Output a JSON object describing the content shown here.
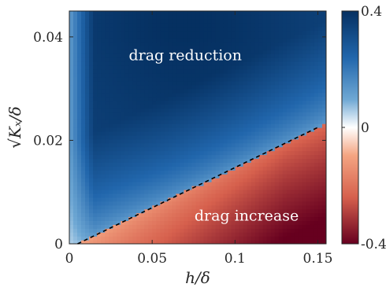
{
  "chart_data": {
    "type": "heatmap",
    "title": "",
    "xlabel": "h/δ",
    "ylabel": "√Kₓ/δ",
    "xlim": [
      0,
      0.155
    ],
    "ylim": [
      0,
      0.045
    ],
    "x_ticks": [
      "0",
      "0.05",
      "0.1",
      "0.15"
    ],
    "x_tick_values": [
      0,
      0.05,
      0.1,
      0.15
    ],
    "y_ticks": [
      "0",
      "0.02",
      "0.04"
    ],
    "y_tick_values": [
      0,
      0.02,
      0.04
    ],
    "colorbar": {
      "range": [
        -0.4,
        0.4
      ],
      "ticks": [
        "0.4",
        "0",
        "-0.4"
      ],
      "tick_values": [
        0.4,
        0,
        -0.4
      ],
      "colormap": "red-white-blue (diverging)",
      "colors": {
        "low": "#67001f",
        "mid": "#ffffff",
        "high": "#053061"
      }
    },
    "boundary_line": {
      "style": "dashed",
      "color": "#000000",
      "points": [
        [
          0.005,
          0.0
        ],
        [
          0.15,
          0.0225
        ]
      ]
    },
    "annotations": [
      {
        "text": "drag reduction",
        "x": 0.07,
        "y": 0.0355
      },
      {
        "text": "drag increase",
        "x": 0.107,
        "y": 0.0045
      }
    ],
    "grid": false
  }
}
